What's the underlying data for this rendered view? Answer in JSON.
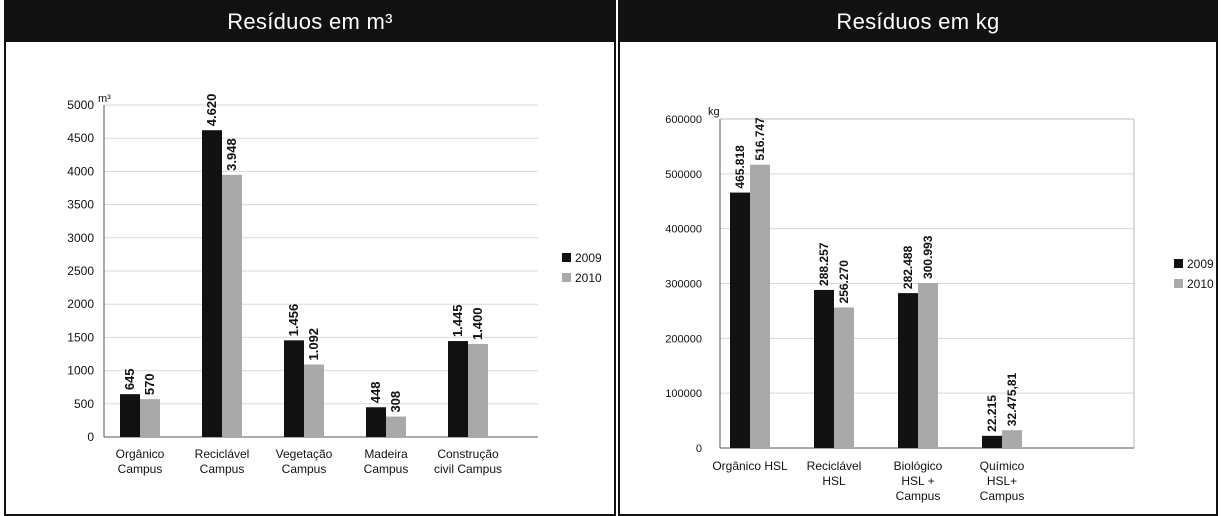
{
  "colors": {
    "series_2009": "#111111",
    "series_2010": "#a9a9a9",
    "grid": "#d8d8d8",
    "header_bg": "#111111"
  },
  "chart_data": [
    {
      "type": "bar",
      "title": "Resíduos em m³",
      "ylabel": "m³",
      "ylim": [
        0,
        5000
      ],
      "yticks": [
        0,
        500,
        1000,
        1500,
        2000,
        2500,
        3000,
        3500,
        4000,
        4500,
        5000
      ],
      "ytick_labels": [
        "0",
        "500",
        "1000",
        "1500",
        "2000",
        "2500",
        "3000",
        "3500",
        "4000",
        "4500",
        "5000"
      ],
      "grid": true,
      "legend_position": "right",
      "categories": [
        [
          "Orgânico",
          "Campus"
        ],
        [
          "Reciclável",
          "Campus"
        ],
        [
          "Vegetação",
          "Campus"
        ],
        [
          "Madeira",
          "Campus"
        ],
        [
          "Construção",
          "civil Campus"
        ]
      ],
      "series": [
        {
          "name": "2009",
          "values": [
            645,
            4620,
            1456,
            448,
            1445
          ],
          "labels": [
            "645",
            "4.620",
            "1.456",
            "448",
            "1.445"
          ]
        },
        {
          "name": "2010",
          "values": [
            570,
            3948,
            1092,
            308,
            1400
          ],
          "labels": [
            "570",
            "3.948",
            "1.092",
            "308",
            "1.400"
          ]
        }
      ]
    },
    {
      "type": "bar",
      "title": "Resíduos em kg",
      "ylabel": "kg",
      "ylim": [
        0,
        600000
      ],
      "yticks": [
        0,
        100000,
        200000,
        300000,
        400000,
        500000,
        600000
      ],
      "ytick_labels": [
        "0",
        "100000",
        "200000",
        "300000",
        "400000",
        "500000",
        "600000"
      ],
      "grid": true,
      "legend_position": "right",
      "categories": [
        [
          "Orgânico HSL"
        ],
        [
          "Reciclável",
          "HSL"
        ],
        [
          "Biológico",
          "HSL +",
          "Campus"
        ],
        [
          "Químico",
          "HSL+",
          "Campus"
        ]
      ],
      "series": [
        {
          "name": "2009",
          "values": [
            465818,
            288257,
            282488,
            22215
          ],
          "labels": [
            "465.818",
            "288.257",
            "282.488",
            "22.215"
          ]
        },
        {
          "name": "2010",
          "values": [
            516747,
            256270,
            300993,
            32475.81
          ],
          "labels": [
            "516.747",
            "256.270",
            "300.993",
            "32.475,81"
          ]
        }
      ]
    }
  ]
}
